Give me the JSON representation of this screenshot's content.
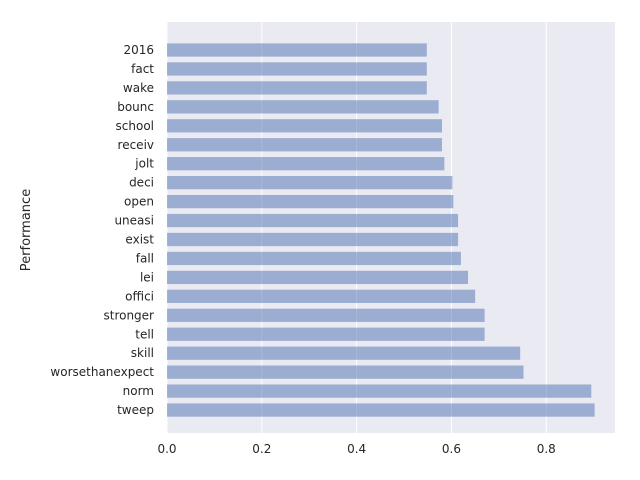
{
  "chart_data": {
    "type": "bar",
    "orientation": "horizontal",
    "title": "",
    "xlabel": "",
    "ylabel": "Performance",
    "xlim": [
      0,
      0.945
    ],
    "xticks": [
      0.0,
      0.2,
      0.4,
      0.6,
      0.8
    ],
    "xtick_labels": [
      "0.0",
      "0.2",
      "0.4",
      "0.6",
      "0.8"
    ],
    "grid": true,
    "categories": [
      "2016",
      "fact",
      "wake",
      "bounc",
      "school",
      "receiv",
      "jolt",
      "deci",
      "open",
      "uneasi",
      "exist",
      "fall",
      "lei",
      "offici",
      "stronger",
      "tell",
      "skill",
      "worsethanexpect",
      "norm",
      "tweep"
    ],
    "values": [
      0.548,
      0.548,
      0.548,
      0.573,
      0.58,
      0.58,
      0.585,
      0.602,
      0.604,
      0.614,
      0.614,
      0.62,
      0.635,
      0.65,
      0.67,
      0.67,
      0.745,
      0.752,
      0.895,
      0.902
    ],
    "colors": {
      "bar": "#4c72b0",
      "bar_opacity": 0.5,
      "plot_background": "#eaeaf2",
      "grid": "#ffffff",
      "text": "#262626"
    }
  }
}
